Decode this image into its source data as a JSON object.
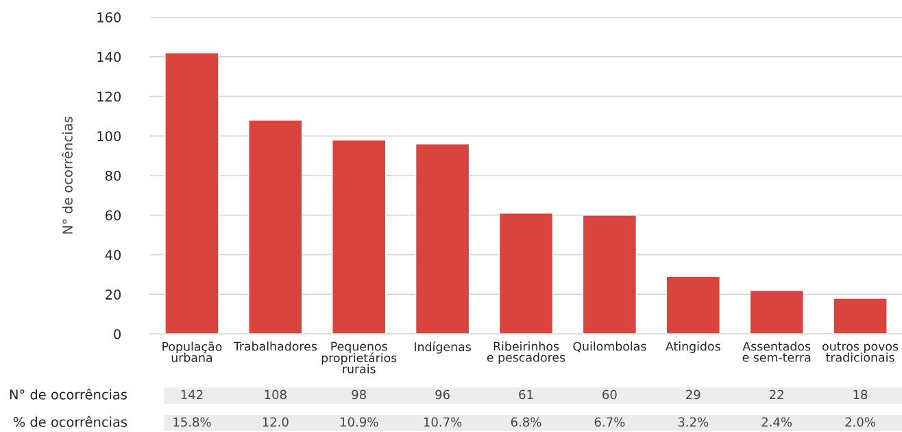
{
  "chart_data": {
    "type": "bar",
    "categories": [
      "População\nurbana",
      "Trabalhadores",
      "Pequenos\nproprietários\nrurais",
      "Indígenas",
      "Ribeirinhos\ne pescadores",
      "Quilombolas",
      "Atingidos",
      "Assentados\ne sem-terra",
      "outros povos\ntradicionais"
    ],
    "values": [
      142,
      108,
      98,
      96,
      61,
      60,
      29,
      22,
      18
    ],
    "color": "#d9443f",
    "ylabel": "N° de ocorrências",
    "ylim": [
      0,
      160
    ],
    "yticks": [
      0,
      20,
      40,
      60,
      80,
      100,
      120,
      140,
      160
    ],
    "grid": "y",
    "data_labels": true,
    "annotations": [
      "N° de ocorrências",
      "% de ocorrências",
      "15.8%",
      "12.0",
      "10.9%",
      "10.7%",
      "6.8%",
      "6.7%",
      "3.2%",
      "2.4%",
      "2.0%"
    ]
  }
}
